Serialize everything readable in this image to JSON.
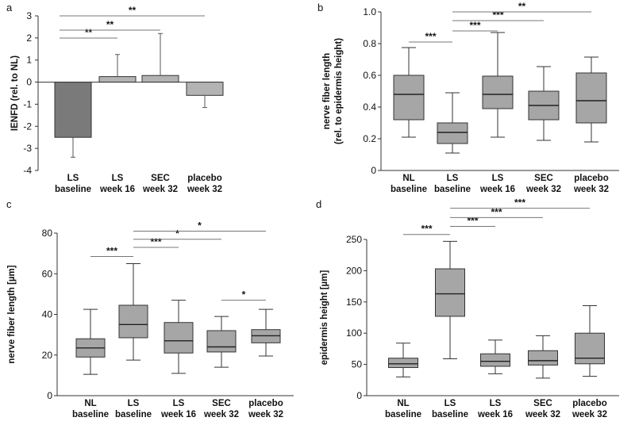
{
  "chart_data": [
    {
      "panel": "a",
      "type": "bar",
      "categories": [
        [
          "LS",
          "baseline"
        ],
        [
          "LS",
          "week 16"
        ],
        [
          "SEC",
          "week 32"
        ],
        [
          "placebo",
          "week 32"
        ]
      ],
      "values": [
        -2.5,
        0.25,
        0.3,
        -0.6
      ],
      "error_bars": [
        [
          -3.4,
          -2.5
        ],
        [
          0.25,
          1.25
        ],
        [
          0.3,
          2.2
        ],
        [
          -1.15,
          -0.6
        ]
      ],
      "bar_colors": [
        "#7a7a7a",
        "#b3b3b3",
        "#b3b3b3",
        "#b3b3b3"
      ],
      "ylabel": "IENFD (rel. to NL)",
      "ylim": [
        -4,
        3
      ],
      "yticks": [
        -4,
        -3,
        -2,
        -1,
        0,
        1,
        2,
        3
      ],
      "significance": [
        {
          "from": 0,
          "to": 1,
          "label": "**"
        },
        {
          "from": 0,
          "to": 2,
          "label": "**"
        },
        {
          "from": 0,
          "to": 3,
          "label": "**"
        }
      ]
    },
    {
      "panel": "b",
      "type": "box",
      "categories": [
        [
          "NL",
          "baseline"
        ],
        [
          "LS",
          "baseline"
        ],
        [
          "LS",
          "week 16"
        ],
        [
          "SEC",
          "week 32"
        ],
        [
          "placebo",
          "week 32"
        ]
      ],
      "boxes": [
        {
          "min": 0.21,
          "q1": 0.32,
          "median": 0.48,
          "q3": 0.6,
          "max": 0.775
        },
        {
          "min": 0.11,
          "q1": 0.17,
          "median": 0.24,
          "q3": 0.3,
          "max": 0.49
        },
        {
          "min": 0.21,
          "q1": 0.39,
          "median": 0.48,
          "q3": 0.595,
          "max": 0.87
        },
        {
          "min": 0.19,
          "q1": 0.32,
          "median": 0.41,
          "q3": 0.5,
          "max": 0.655
        },
        {
          "min": 0.18,
          "q1": 0.3,
          "median": 0.44,
          "q3": 0.615,
          "max": 0.715
        }
      ],
      "ylabel": [
        "nerve fiber length",
        "(rel. to epidermis height)"
      ],
      "ylim": [
        0,
        1.0
      ],
      "yticks": [
        0,
        0.2,
        0.4,
        0.6,
        0.8,
        1.0
      ],
      "ytick_labels": [
        "0",
        "0.2",
        "0.4",
        "0.6",
        "0.8",
        "1.0"
      ],
      "significance": [
        {
          "from": 0,
          "to": 1,
          "label": "***",
          "y": 0.81
        },
        {
          "from": 1,
          "to": 2,
          "label": "***",
          "y": 0.88
        },
        {
          "from": 1,
          "to": 3,
          "label": "***",
          "y": 0.945
        },
        {
          "from": 1,
          "to": 4,
          "label": "**",
          "y": 1.0
        }
      ]
    },
    {
      "panel": "c",
      "type": "box",
      "categories": [
        [
          "NL",
          "baseline"
        ],
        [
          "LS",
          "baseline"
        ],
        [
          "LS",
          "week 16"
        ],
        [
          "SEC",
          "week 32"
        ],
        [
          "placebo",
          "week 32"
        ]
      ],
      "boxes": [
        {
          "min": 10.5,
          "q1": 19,
          "median": 23.5,
          "q3": 28,
          "max": 42.5
        },
        {
          "min": 17.5,
          "q1": 28.5,
          "median": 35,
          "q3": 44.5,
          "max": 65
        },
        {
          "min": 11,
          "q1": 21,
          "median": 27,
          "q3": 36,
          "max": 47
        },
        {
          "min": 14,
          "q1": 21.5,
          "median": 24,
          "q3": 32,
          "max": 39
        },
        {
          "min": 19.5,
          "q1": 26,
          "median": 29.5,
          "q3": 32.5,
          "max": 42.5
        }
      ],
      "ylabel": "nerve fiber length [µm]",
      "ylim": [
        0,
        80
      ],
      "yticks": [
        0,
        20,
        40,
        60,
        80
      ],
      "ytick_labels": [
        "0",
        "20",
        "40",
        "60",
        "80"
      ],
      "significance": [
        {
          "from": 0,
          "to": 1,
          "label": "***",
          "y": 68.5
        },
        {
          "from": 1,
          "to": 2,
          "label": "***",
          "y": 73
        },
        {
          "from": 1,
          "to": 3,
          "label": "*",
          "y": 77
        },
        {
          "from": 1,
          "to": 4,
          "label": "*",
          "y": 81
        },
        {
          "from": 3,
          "to": 4,
          "label": "*",
          "y": 47
        }
      ]
    },
    {
      "panel": "d",
      "type": "box",
      "categories": [
        [
          "NL",
          "baseline"
        ],
        [
          "LS",
          "baseline"
        ],
        [
          "LS",
          "week 16"
        ],
        [
          "SEC",
          "week 32"
        ],
        [
          "placebo",
          "week 32"
        ]
      ],
      "boxes": [
        {
          "min": 30,
          "q1": 45,
          "median": 51,
          "q3": 60,
          "max": 84
        },
        {
          "min": 59,
          "q1": 127,
          "median": 163,
          "q3": 203,
          "max": 247
        },
        {
          "min": 35,
          "q1": 47,
          "median": 55,
          "q3": 67,
          "max": 89
        },
        {
          "min": 28,
          "q1": 49,
          "median": 56,
          "q3": 72,
          "max": 96
        },
        {
          "min": 31,
          "q1": 51,
          "median": 60,
          "q3": 100,
          "max": 144
        }
      ],
      "ylabel": "epidermis height [µm]",
      "ylim": [
        0,
        250
      ],
      "yticks": [
        0,
        50,
        100,
        150,
        200,
        250
      ],
      "ytick_labels": [
        "0",
        "50",
        "100",
        "150",
        "200",
        "250"
      ],
      "significance": [
        {
          "from": 0,
          "to": 1,
          "label": "***",
          "y": 258
        },
        {
          "from": 1,
          "to": 2,
          "label": "***",
          "y": 271
        },
        {
          "from": 1,
          "to": 3,
          "label": "***",
          "y": 285
        },
        {
          "from": 1,
          "to": 4,
          "label": "***",
          "y": 300
        }
      ]
    }
  ],
  "style": {
    "box_fill": "#a6a6a6",
    "bar_dark": "#7a7a7a",
    "bar_light": "#b3b3b3",
    "line_color": "#333333",
    "sig_line_color": "#777777"
  }
}
